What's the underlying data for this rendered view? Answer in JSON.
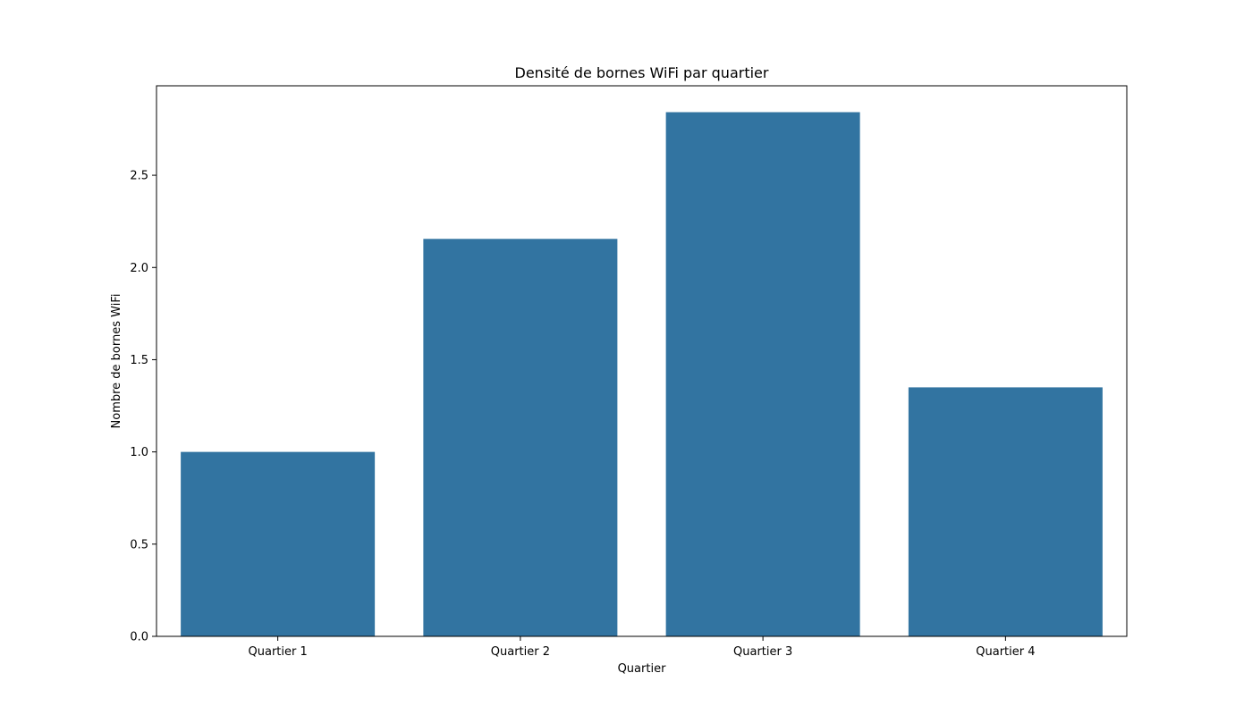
{
  "chart_data": {
    "type": "bar",
    "title": "Densité de bornes WiFi par quartier",
    "xlabel": "Quartier",
    "ylabel": "Nombre de bornes WiFi",
    "categories": [
      "Quartier 1",
      "Quartier 2",
      "Quartier 3",
      "Quartier 4"
    ],
    "values": [
      1.0,
      2.155,
      2.842,
      1.35
    ],
    "ylim": [
      0,
      2.985
    ],
    "yticks": [
      0.0,
      0.5,
      1.0,
      1.5,
      2.0,
      2.5
    ],
    "ytick_labels": [
      "0.0",
      "0.5",
      "1.0",
      "1.5",
      "2.0",
      "2.5"
    ],
    "grid": false,
    "legend": "none",
    "bar_color": "#3274a1"
  }
}
